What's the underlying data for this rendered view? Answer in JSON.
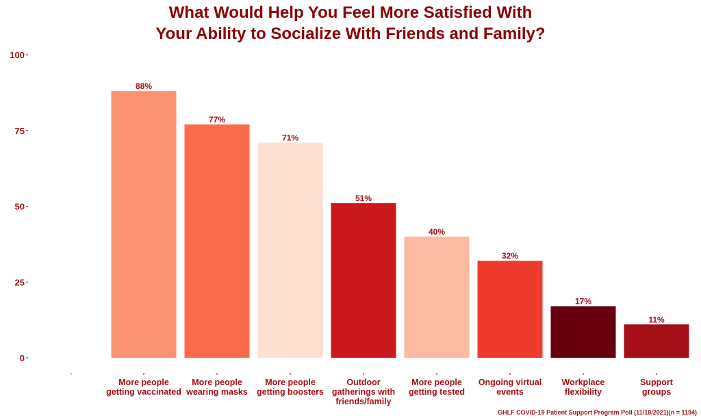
{
  "title_lines": [
    "What Would Help You Feel More Satisfied With",
    "Your Ability to Socialize With Friends and Family?"
  ],
  "caption": "GHLF COVID-19 Patient Support Program Poll (11/18/2021)(n = 1194)",
  "chart_data": {
    "type": "bar",
    "title": "What Would Help You Feel More Satisfied With Your Ability to Socialize With Friends and Family?",
    "categories": [
      [
        "More people",
        "getting vaccinated"
      ],
      [
        "More people",
        "wearing masks"
      ],
      [
        "More people",
        "getting boosters"
      ],
      [
        "Outdoor",
        "gatherings with",
        "friends/family"
      ],
      [
        "More people",
        "getting tested"
      ],
      [
        "Ongoing virtual",
        "events"
      ],
      [
        "Workplace",
        "flexibility"
      ],
      [
        "Support",
        "groups"
      ]
    ],
    "values": [
      88,
      77,
      71,
      51,
      40,
      32,
      17,
      11
    ],
    "value_labels": [
      "88%",
      "77%",
      "71%",
      "51%",
      "40%",
      "32%",
      "17%",
      "11%"
    ],
    "bar_colors": [
      "#fc9272",
      "#fb6a4a",
      "#fee0d2",
      "#cb181d",
      "#fcbba1",
      "#ef3b2c",
      "#67000d",
      "#a50f15"
    ],
    "yticks": [
      0,
      25,
      50,
      75,
      100
    ],
    "ylim": [
      0,
      100
    ],
    "grid": false,
    "xlabel": "",
    "ylabel": ""
  },
  "colors": {
    "title": "#8b0000",
    "labels": "#a50f15"
  }
}
